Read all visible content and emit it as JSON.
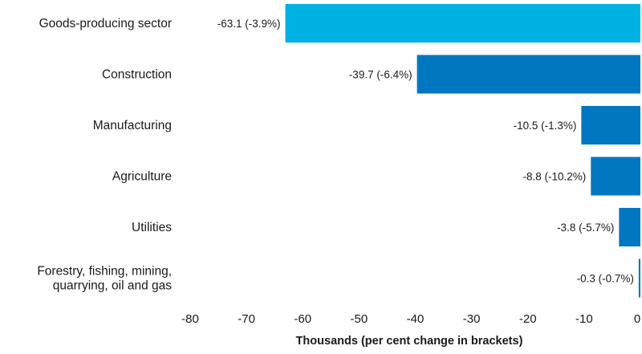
{
  "chart_data": {
    "type": "bar",
    "orientation": "horizontal",
    "title": "",
    "xlabel": "Thousands (per cent change in brackets)",
    "ylabel": "",
    "xlim": [
      -80,
      0
    ],
    "xticks": [
      "-80",
      "-70",
      "-60",
      "-50",
      "-40",
      "-30",
      "-20",
      "-10",
      "0"
    ],
    "grid": false,
    "legend": "none",
    "categories": [
      [
        "Goods-producing sector"
      ],
      [
        "Construction"
      ],
      [
        "Manufacturing"
      ],
      [
        "Agriculture"
      ],
      [
        "Utilities"
      ],
      [
        "Forestry, fishing, mining,",
        "quarrying, oil and gas"
      ]
    ],
    "values": [
      -63.1,
      -39.7,
      -10.5,
      -8.8,
      -3.8,
      -0.3
    ],
    "data_labels": [
      "-63.1 (-3.9%)",
      "-39.7 (-6.4%)",
      "-10.5 (-1.3%)",
      "-8.8 (-10.2%)",
      "-3.8 (-5.7%)",
      "-0.3 (-0.7%)"
    ],
    "colors": [
      "#00b2e3",
      "#0077c0",
      "#0077c0",
      "#0077c0",
      "#0077c0",
      "#0077c0"
    ]
  }
}
